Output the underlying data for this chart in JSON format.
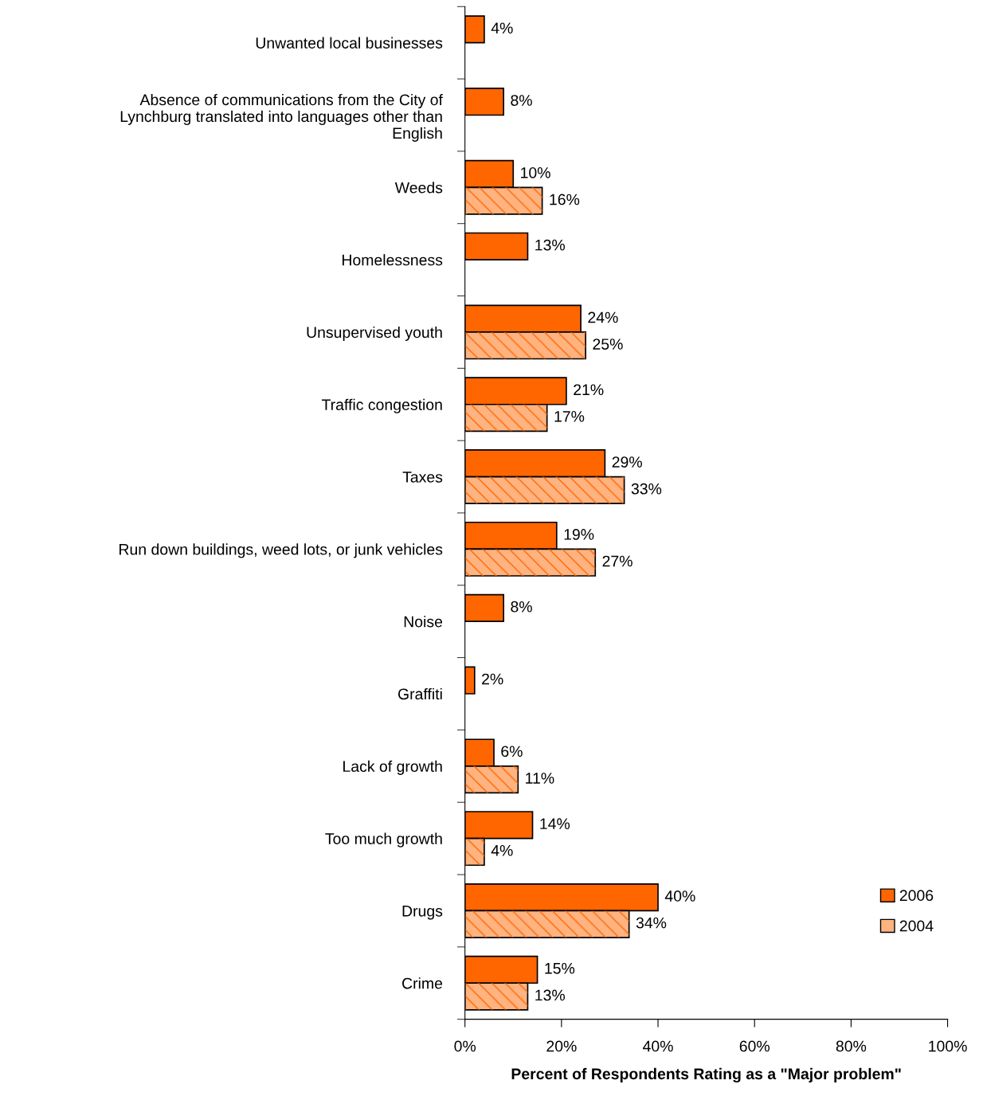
{
  "chart_data": {
    "type": "bar",
    "orientation": "horizontal",
    "xlabel": "Percent of Respondents Rating as a \"Major problem\"",
    "categories": [
      "Unwanted local businesses",
      "Absence of communications from the City of\nLynchburg translated into languages other than\nEnglish",
      "Weeds",
      "Homelessness",
      "Unsupervised youth",
      "Traffic congestion",
      "Taxes",
      "Run down buildings, weed lots, or junk vehicles",
      "Noise",
      "Graffiti",
      "Lack of growth",
      "Too much growth",
      "Drugs",
      "Crime"
    ],
    "series": [
      {
        "name": "2006",
        "color": "#ff6600",
        "values": [
          4,
          8,
          10,
          13,
          24,
          21,
          29,
          19,
          8,
          2,
          6,
          14,
          40,
          15
        ],
        "value_labels": [
          "4%",
          "8%",
          "10%",
          "13%",
          "24%",
          "21%",
          "29%",
          "19%",
          "8%",
          "2%",
          "6%",
          "14%",
          "40%",
          "15%"
        ]
      },
      {
        "name": "2004",
        "color": "#ffb380",
        "values": [
          null,
          null,
          16,
          null,
          25,
          17,
          33,
          27,
          null,
          null,
          11,
          4,
          34,
          13
        ],
        "value_labels": [
          null,
          null,
          "16%",
          null,
          "25%",
          "17%",
          "33%",
          "27%",
          null,
          null,
          "11%",
          "4%",
          "34%",
          "13%"
        ]
      }
    ],
    "xlim": [
      0,
      100
    ],
    "xticks": [
      {
        "value": 0,
        "label": "0%"
      },
      {
        "value": 20,
        "label": "20%"
      },
      {
        "value": 40,
        "label": "40%"
      },
      {
        "value": 60,
        "label": "60%"
      },
      {
        "value": 80,
        "label": "80%"
      },
      {
        "value": 100,
        "label": "100%"
      }
    ],
    "legend": "bottom right",
    "grid": false
  }
}
